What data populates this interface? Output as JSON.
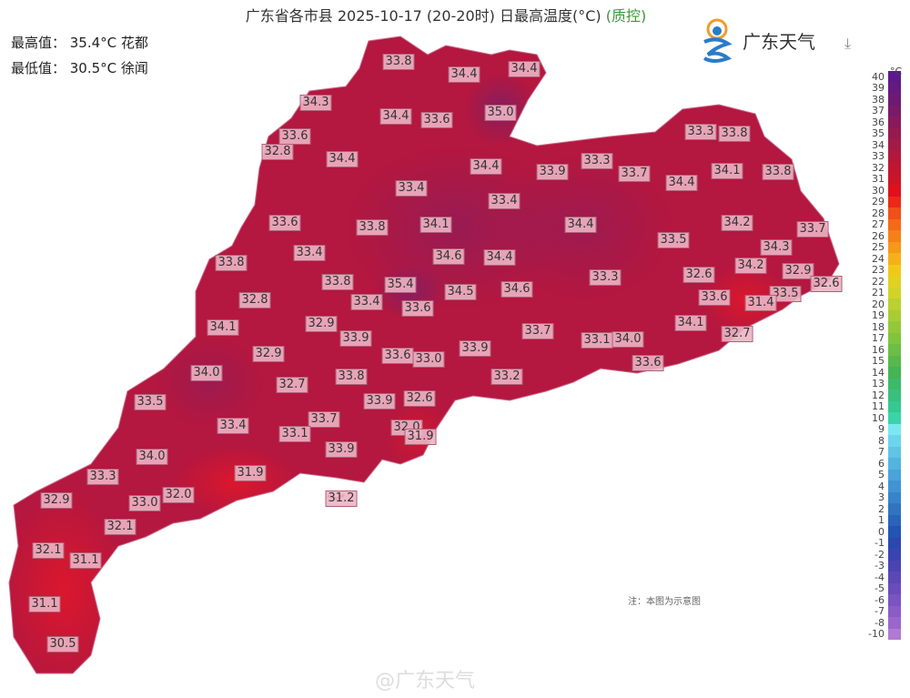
{
  "header": {
    "title": "广东省各市县 2025-10-17 (20-20时) 日最高温度(°C)",
    "qc_label": "(质控)",
    "max_stat": "最高值： 35.4°C 花都",
    "min_stat": "最低值： 30.5°C 徐闻",
    "logo_text": "广东天气",
    "download_icon": "download-icon"
  },
  "map": {
    "station_values": [
      "33.8",
      "34.4",
      "34.4",
      "35.0",
      "34.3",
      "34.4",
      "33.6",
      "33.6",
      "32.8",
      "34.4",
      "34.4",
      "33.9",
      "33.3",
      "33.7",
      "33.3",
      "33.8",
      "34.1",
      "33.8",
      "34.4",
      "33.4",
      "33.4",
      "34.1",
      "33.8",
      "33.6",
      "34.4",
      "34.2",
      "33.7",
      "33.5",
      "34.3",
      "34.6",
      "34.4",
      "33.4",
      "33.8",
      "34.2",
      "32.9",
      "32.6",
      "33.8",
      "35.4",
      "32.6",
      "33.3",
      "33.5",
      "34.5",
      "34.6",
      "33.4",
      "33.6",
      "32.8",
      "33.6",
      "31.4",
      "32.9",
      "34.1",
      "33.9",
      "33.7",
      "34.1",
      "32.7",
      "33.1",
      "34.0",
      "33.6",
      "33.0",
      "33.9",
      "32.9",
      "33.6",
      "34.0",
      "33.8",
      "32.7",
      "33.2",
      "33.5",
      "33.9",
      "32.6",
      "33.4",
      "33.7",
      "33.1",
      "32.0",
      "31.9",
      "33.9",
      "34.0",
      "31.9",
      "33.3",
      "32.0",
      "33.0",
      "31.2",
      "32.9",
      "32.1",
      "32.1",
      "31.1",
      "31.1",
      "30.5"
    ],
    "colors": {
      "main": "#b4173f",
      "purple": "#7e1f66",
      "red": "#d8152a"
    }
  },
  "legend": {
    "unit": "°C",
    "labels": [
      "40",
      "39",
      "38",
      "37",
      "36",
      "35",
      "34",
      "33",
      "32",
      "31",
      "30",
      "29",
      "28",
      "27",
      "26",
      "25",
      "24",
      "23",
      "22",
      "21",
      "20",
      "19",
      "18",
      "17",
      "16",
      "15",
      "14",
      "13",
      "12",
      "11",
      "10",
      "9",
      "8",
      "7",
      "6",
      "5",
      "4",
      "3",
      "2",
      "1",
      "0",
      "-1",
      "-2",
      "-3",
      "-4",
      "-5",
      "-6",
      "-7",
      "-8",
      "-10"
    ],
    "colors": [
      "#5a1a8c",
      "#641a80",
      "#6e1a74",
      "#7a1a68",
      "#881a5c",
      "#961a50",
      "#a41a46",
      "#b2183c",
      "#c01632",
      "#cc1428",
      "#e0101c",
      "#ec2818",
      "#f05018",
      "#f46a18",
      "#f68018",
      "#f69818",
      "#f6b018",
      "#f2c818",
      "#e4d020",
      "#d0d428",
      "#bcd030",
      "#a8cc34",
      "#94c838",
      "#80c43c",
      "#6cbe44",
      "#58b84c",
      "#44b454",
      "#3cba6a",
      "#38c07e",
      "#34c892",
      "#3ad4a8",
      "#7ae8f0",
      "#6cd4ec",
      "#60c4e6",
      "#54b4e0",
      "#4aa4da",
      "#4094d2",
      "#3884ca",
      "#3074c2",
      "#2a64ba",
      "#2454b2",
      "#2a48b0",
      "#3a44b0",
      "#4a44b2",
      "#5a48b6",
      "#6a4cba",
      "#7a54c0",
      "#8a5cc6",
      "#9a66cc",
      "#b07ad4"
    ]
  },
  "footer": {
    "note": "注：本图为示意图",
    "watermark": "@广东天气"
  }
}
